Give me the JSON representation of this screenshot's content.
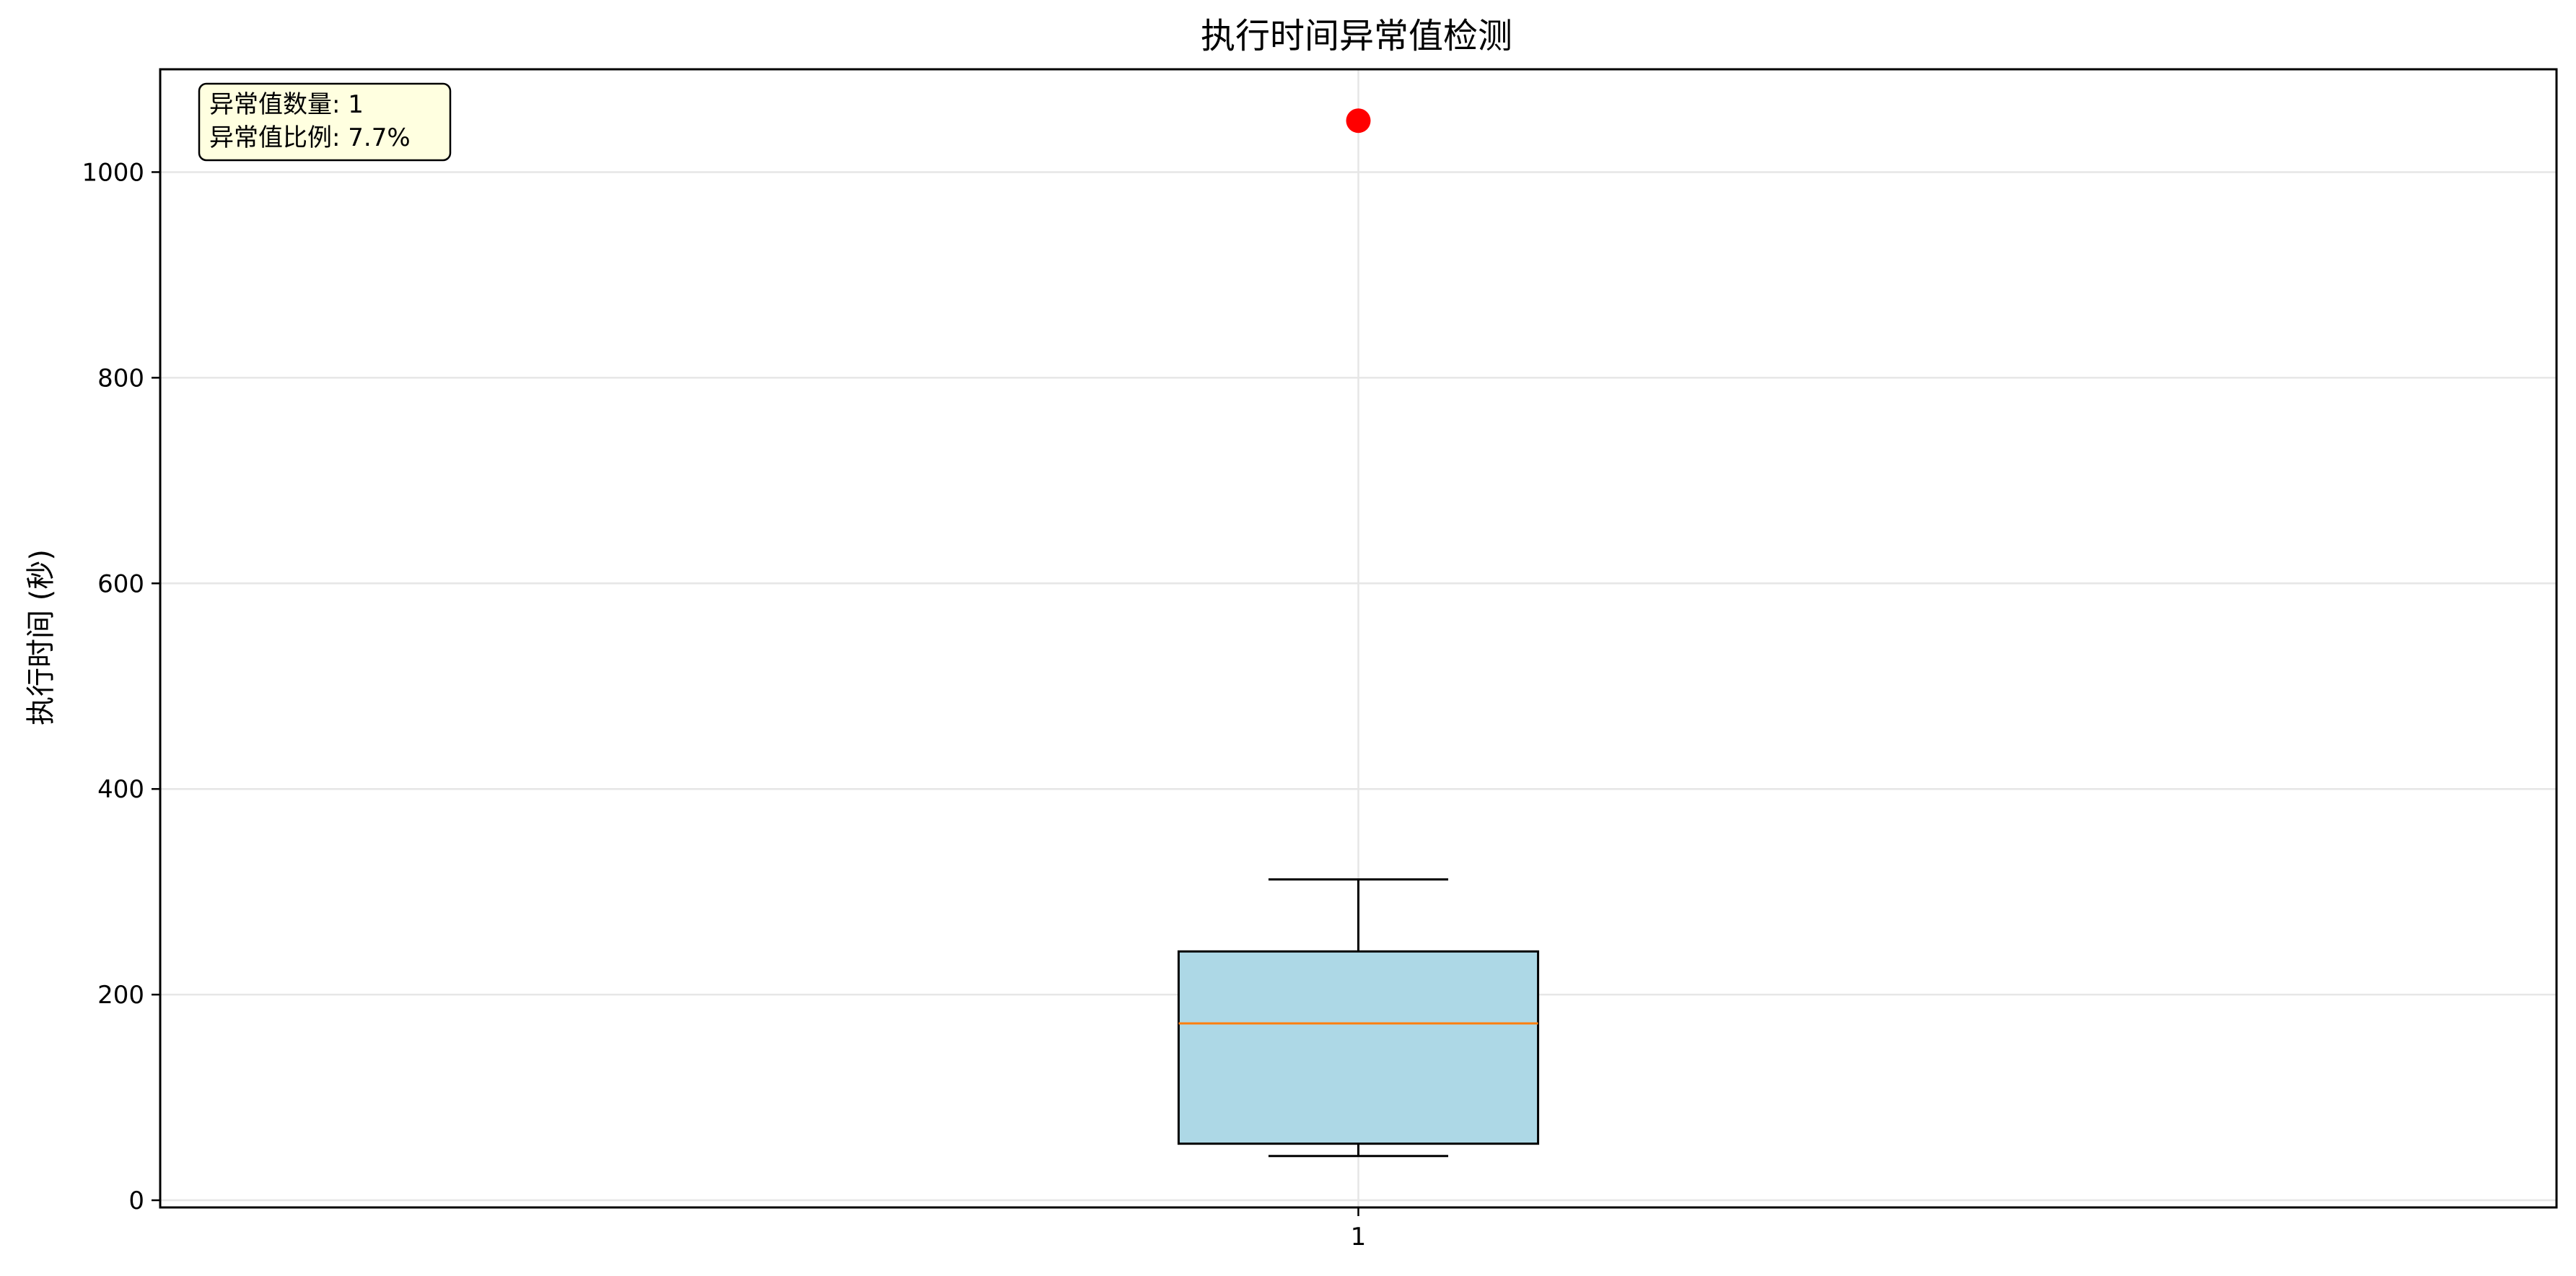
{
  "chart_data": {
    "type": "box",
    "title": "执行时间异常值检测",
    "xlabel": "",
    "ylabel": "执行时间 (秒)",
    "categories": [
      "1"
    ],
    "ylim": [
      -7,
      1100
    ],
    "xlim": [
      0.5,
      1.5
    ],
    "y_ticks": [
      0,
      200,
      400,
      600,
      800,
      1000
    ],
    "grid": true,
    "box": {
      "category": "1",
      "whisker_low": 43,
      "q1": 55,
      "median": 172,
      "q3": 242,
      "whisker_high": 312,
      "outliers": [
        1050
      ]
    },
    "annotation": {
      "line1": "异常值数量: 1",
      "line2": "异常值比例: 7.7%"
    },
    "colors": {
      "box_fill": "#add8e6",
      "median": "#ff7f0e",
      "outlier": "#ff0000",
      "annotation_bg": "#ffffe0",
      "grid": "#e6e6e6"
    }
  }
}
